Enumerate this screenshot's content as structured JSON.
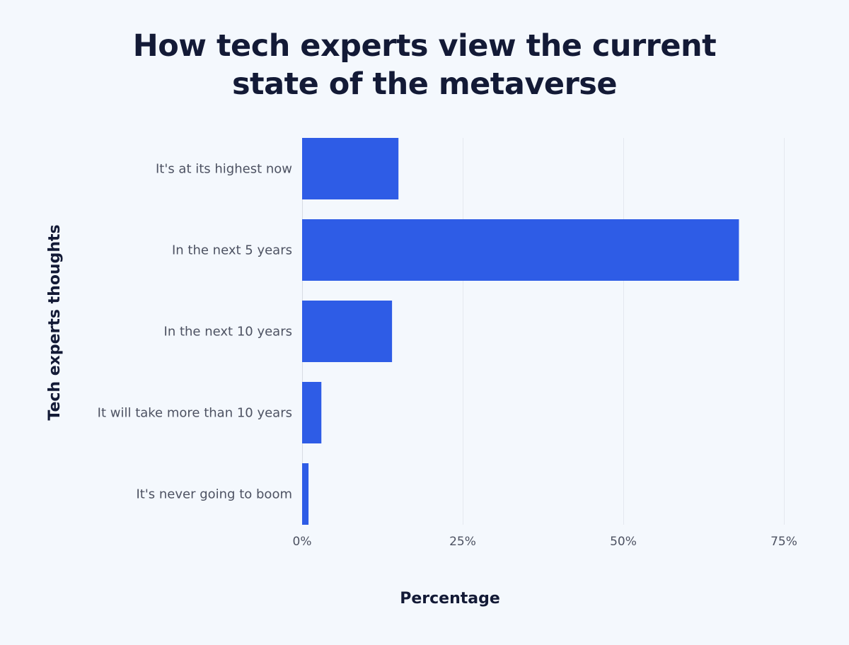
{
  "chart_data": {
    "type": "bar",
    "orientation": "horizontal",
    "title": "How tech experts view the current state of the metaverse",
    "title_lines": [
      "How tech experts view the current",
      "state of the metaverse"
    ],
    "categories": [
      "It's at its highest now",
      "In the next 5 years",
      "In the next 10 years",
      "It will take more than 10 years",
      "It's never going to boom"
    ],
    "values": [
      15,
      68,
      14,
      3,
      1
    ],
    "xlabel": "Percentage",
    "ylabel": "Tech experts thoughts",
    "xlim": [
      0,
      75
    ],
    "xticks": [
      0,
      25,
      50,
      75
    ],
    "xtick_labels": [
      "0%",
      "25%",
      "50%",
      "75%"
    ],
    "grid": "vertical",
    "legend": "none",
    "bar_color": "#2e5ce6",
    "background_color": "#f4f8fd"
  }
}
